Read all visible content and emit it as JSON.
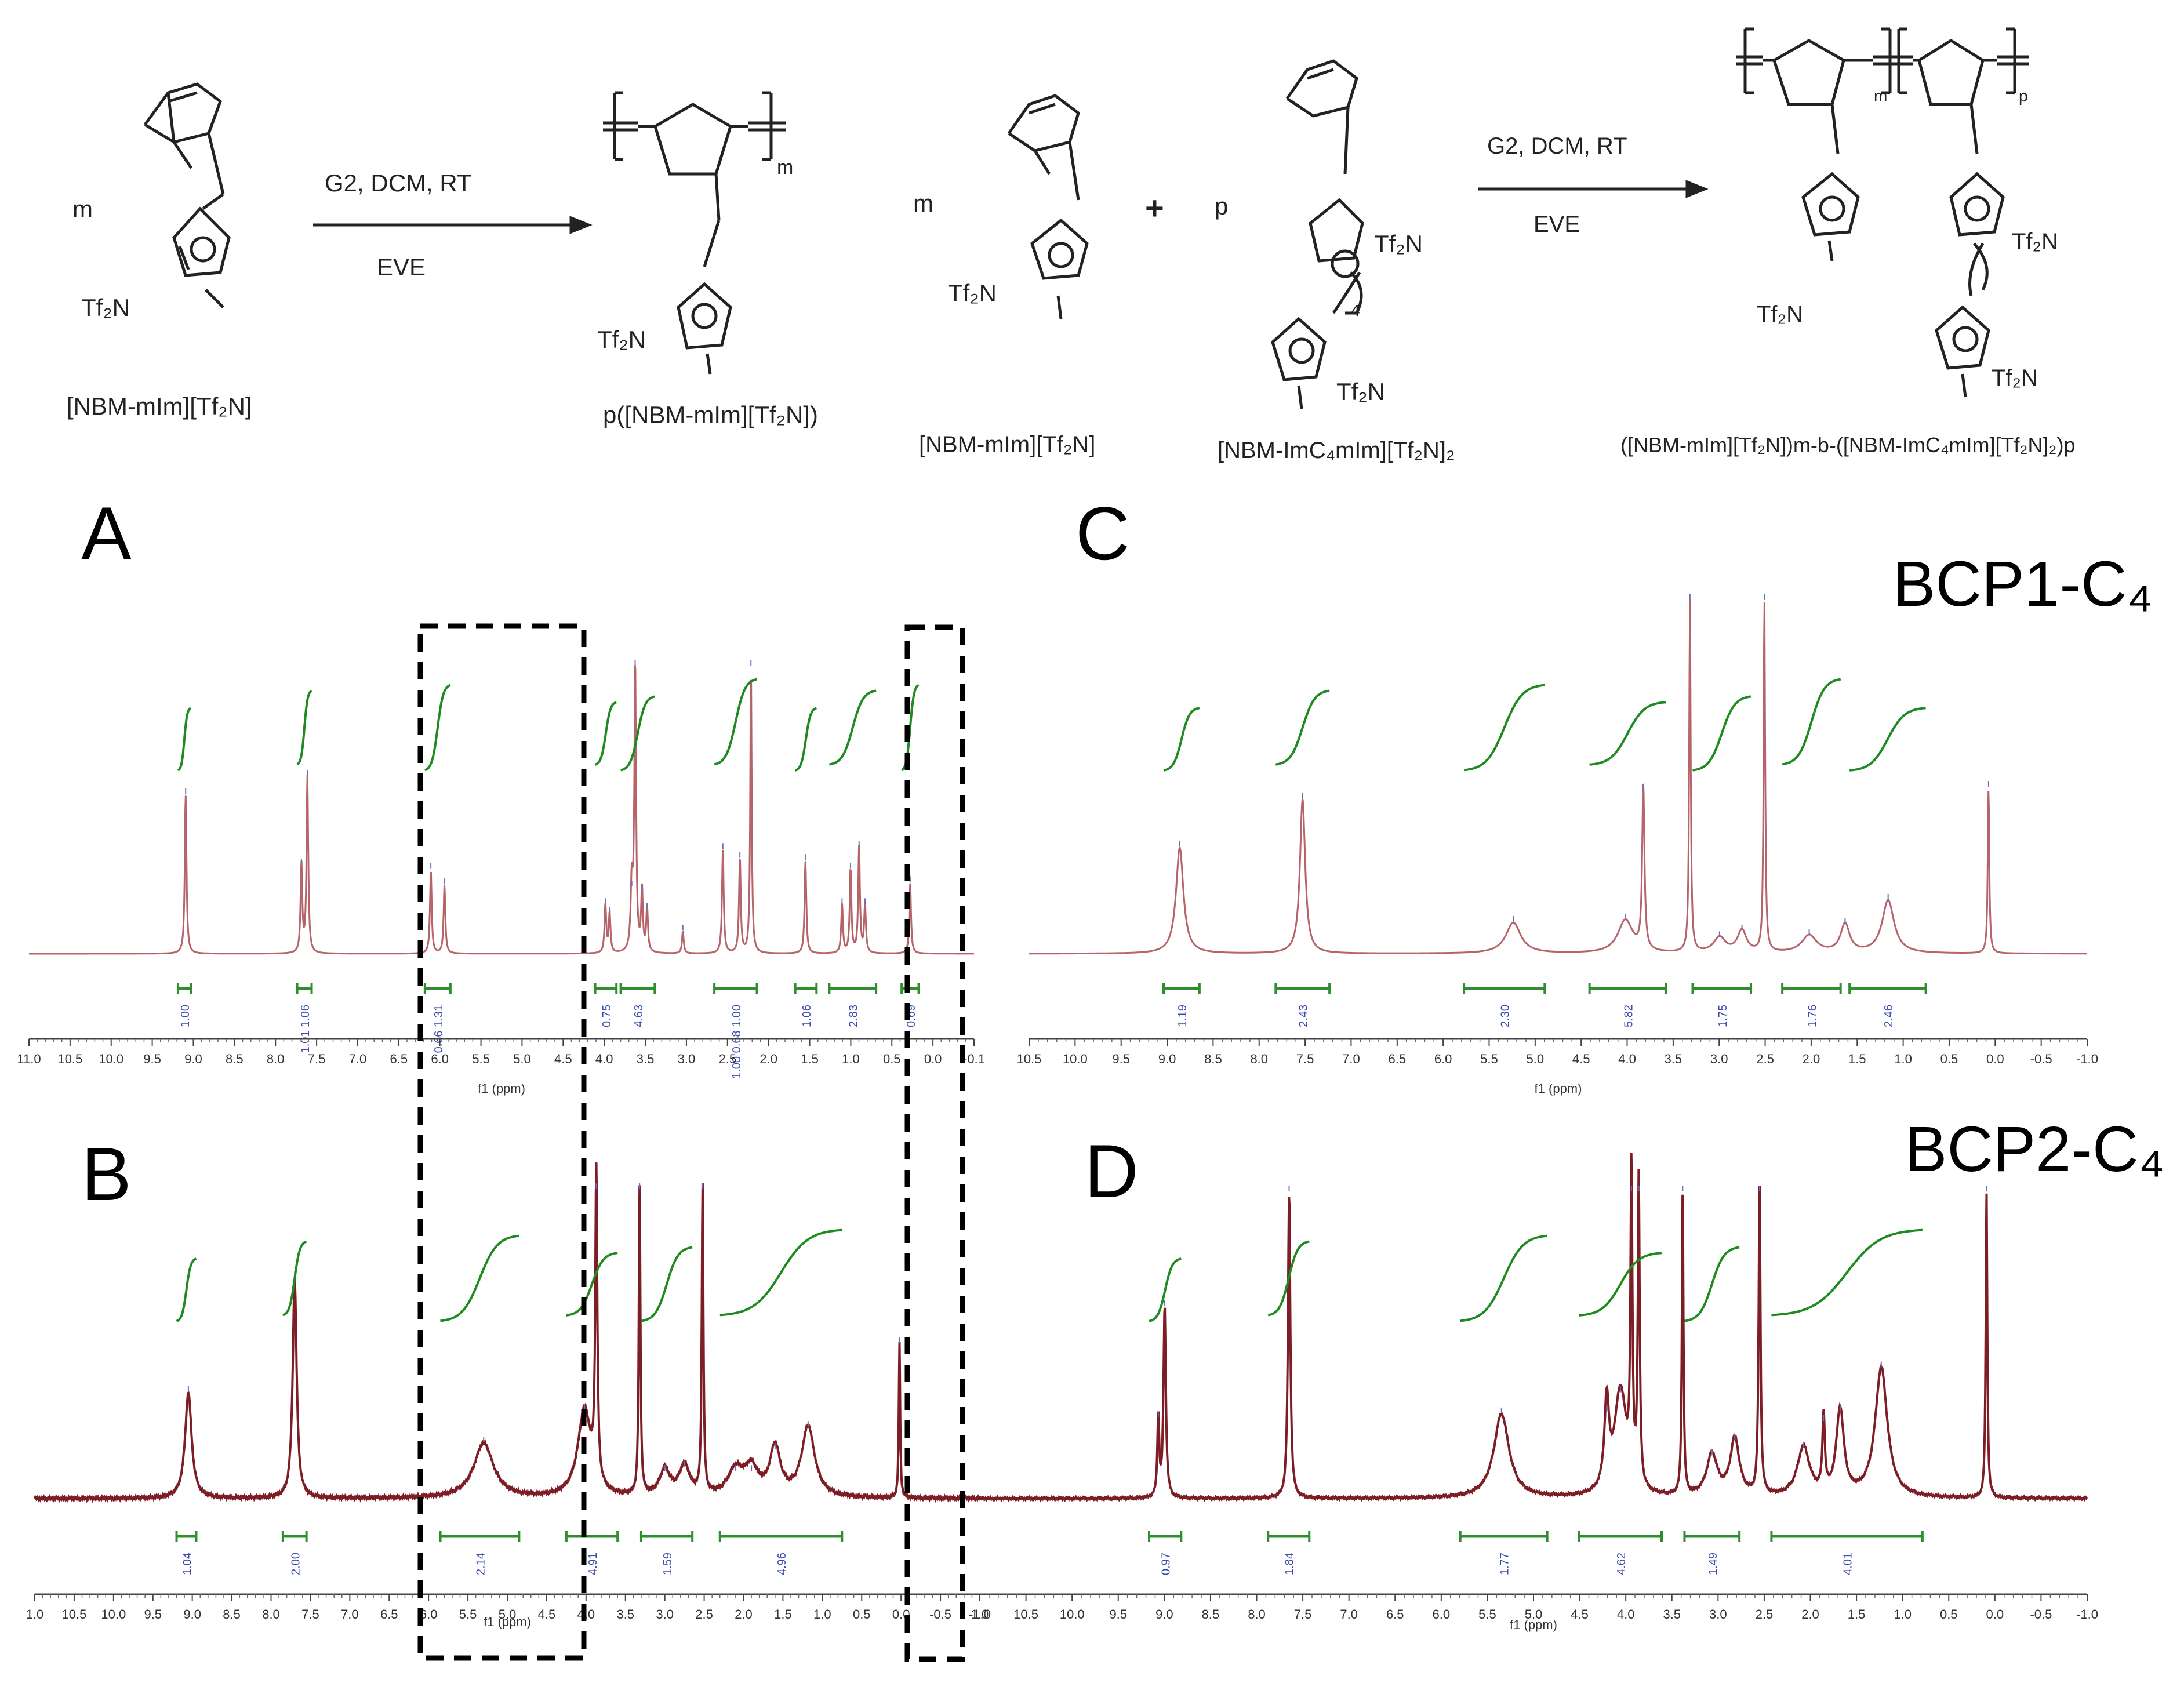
{
  "scheme": {
    "left": {
      "monomer_label": "[NBM-mIm][Tf₂N]",
      "monomer_counter": "Tf₂N",
      "repeat": "m",
      "conditions_top": "G2, DCM, RT",
      "conditions_bottom": "EVE",
      "polymer_label": "p([NBM-mIm][Tf₂N])",
      "polymer_counter": "Tf₂N",
      "polymer_repeat": "m"
    },
    "right": {
      "monomer1_label": "[NBM-mIm][Tf₂N]",
      "monomer1_repeat": "m",
      "monomer1_counter": "Tf₂N",
      "plus": "+",
      "monomer2_repeat": "p",
      "monomer2_label": "[NBM-ImC₄mIm][Tf₂N]₂",
      "monomer2_counter_top": "Tf₂N",
      "monomer2_counter_bottom": "Tf₂N",
      "spacer_subscript": "4",
      "conditions_top": "G2, DCM, RT",
      "conditions_bottom": "EVE",
      "polymer_label": "([NBM-mIm][Tf₂N])m-b-([NBM-ImC₄mIm][Tf₂N]₂)p",
      "polymer_repeat_m": "m",
      "polymer_repeat_p": "p",
      "polymer_counter_left": "Tf₂N",
      "polymer_counter_mid": "Tf₂N",
      "polymer_counter_bottom": "Tf₂N"
    }
  },
  "panel_letters": {
    "A": "A",
    "B": "B",
    "C": "C",
    "D": "D"
  },
  "panel_titles": {
    "C": "BCP1-C₄",
    "D": "BCP2-C₄"
  },
  "colors": {
    "spectrum_light": "#b5646a",
    "spectrum_dark": "#7d1d25",
    "integral_curve": "#1f8a1f",
    "integral_bar": "#2f8f2f",
    "integral_text": "#3c4bb0",
    "dashed_box": "#000000"
  },
  "chart_data": [
    {
      "panel": "A",
      "type": "line",
      "xlabel": "f1 (ppm)",
      "x_ticks": [
        "11.0",
        "10.5",
        "10.0",
        "9.5",
        "9.0",
        "8.5",
        "8.0",
        "7.5",
        "7.0",
        "6.5",
        "6.0",
        "5.5",
        "5.0",
        "4.5",
        "4.0",
        "3.5",
        "3.0",
        "2.5",
        "2.0",
        "1.5",
        "1.0",
        "0.5",
        "0.0",
        "-0.1"
      ],
      "xlim": [
        11.0,
        -0.1
      ],
      "peaks": [
        {
          "ppm": 9.16,
          "height": 0.72,
          "width": 0.012
        },
        {
          "ppm": 7.8,
          "height": 0.4,
          "width": 0.012
        },
        {
          "ppm": 7.73,
          "height": 0.8,
          "width": 0.012
        },
        {
          "ppm": 6.28,
          "height": 0.38,
          "width": 0.012
        },
        {
          "ppm": 6.12,
          "height": 0.31,
          "width": 0.012
        },
        {
          "ppm": 4.23,
          "height": 0.22,
          "width": 0.012
        },
        {
          "ppm": 4.18,
          "height": 0.18,
          "width": 0.012
        },
        {
          "ppm": 3.92,
          "height": 0.3,
          "width": 0.015
        },
        {
          "ppm": 3.88,
          "height": 1.3,
          "width": 0.012
        },
        {
          "ppm": 3.8,
          "height": 0.28,
          "width": 0.012
        },
        {
          "ppm": 3.74,
          "height": 0.2,
          "width": 0.012
        },
        {
          "ppm": 3.32,
          "height": 0.1,
          "width": 0.012
        },
        {
          "ppm": 2.85,
          "height": 0.47,
          "width": 0.012
        },
        {
          "ppm": 2.65,
          "height": 0.43,
          "width": 0.012
        },
        {
          "ppm": 2.52,
          "height": 1.3,
          "width": 0.01
        },
        {
          "ppm": 1.88,
          "height": 0.42,
          "width": 0.012
        },
        {
          "ppm": 1.45,
          "height": 0.22,
          "width": 0.012
        },
        {
          "ppm": 1.35,
          "height": 0.38,
          "width": 0.012
        },
        {
          "ppm": 1.25,
          "height": 0.48,
          "width": 0.012
        },
        {
          "ppm": 1.18,
          "height": 0.22,
          "width": 0.012
        },
        {
          "ppm": 0.65,
          "height": 0.32,
          "width": 0.012
        }
      ],
      "integrals": [
        {
          "from": 9.25,
          "to": 9.1,
          "value": "1.00"
        },
        {
          "from": 7.85,
          "to": 7.68,
          "value": "1.01 1.06"
        },
        {
          "from": 6.35,
          "to": 6.05,
          "value": "0.66 1.31"
        },
        {
          "from": 4.35,
          "to": 4.1,
          "value": "0.75"
        },
        {
          "from": 4.05,
          "to": 3.65,
          "value": "4.63"
        },
        {
          "from": 2.95,
          "to": 2.45,
          "value": "1.00 0.68 1.00"
        },
        {
          "from": 2.0,
          "to": 1.75,
          "value": "1.06"
        },
        {
          "from": 1.6,
          "to": 1.05,
          "value": "2.83"
        },
        {
          "from": 0.75,
          "to": 0.55,
          "value": "0.69"
        }
      ]
    },
    {
      "panel": "B",
      "type": "line",
      "xlabel": "f1 (ppm)",
      "x_ticks": [
        "1.0",
        "10.5",
        "10.0",
        "9.5",
        "9.0",
        "8.5",
        "8.0",
        "7.5",
        "7.0",
        "6.5",
        "6.0",
        "5.5",
        "5.0",
        "4.5",
        "4.0",
        "3.5",
        "3.0",
        "2.5",
        "2.0",
        "1.5",
        "1.0",
        "0.5",
        "0.0",
        "-0.5",
        "-1.0"
      ],
      "xlim": [
        11.0,
        -1.0
      ],
      "peaks": [
        {
          "ppm": 9.05,
          "height": 0.48,
          "width": 0.05
        },
        {
          "ppm": 7.7,
          "height": 1.0,
          "width": 0.03
        },
        {
          "ppm": 5.3,
          "height": 0.25,
          "width": 0.15
        },
        {
          "ppm": 4.02,
          "height": 0.4,
          "width": 0.1
        },
        {
          "ppm": 3.87,
          "height": 1.4,
          "width": 0.015
        },
        {
          "ppm": 3.32,
          "height": 1.4,
          "width": 0.012
        },
        {
          "ppm": 3.0,
          "height": 0.12,
          "width": 0.08
        },
        {
          "ppm": 2.75,
          "height": 0.14,
          "width": 0.08
        },
        {
          "ppm": 2.52,
          "height": 1.4,
          "width": 0.012
        },
        {
          "ppm": 2.1,
          "height": 0.12,
          "width": 0.12
        },
        {
          "ppm": 1.9,
          "height": 0.12,
          "width": 0.1
        },
        {
          "ppm": 1.6,
          "height": 0.22,
          "width": 0.08
        },
        {
          "ppm": 1.18,
          "height": 0.32,
          "width": 0.1
        },
        {
          "ppm": 0.02,
          "height": 0.7,
          "width": 0.01
        }
      ],
      "integrals": [
        {
          "from": 9.2,
          "to": 8.95,
          "value": "1.04"
        },
        {
          "from": 7.85,
          "to": 7.55,
          "value": "2.00"
        },
        {
          "from": 5.85,
          "to": 4.85,
          "value": "2.14"
        },
        {
          "from": 4.25,
          "to": 3.6,
          "value": "4.91"
        },
        {
          "from": 3.3,
          "to": 2.65,
          "value": "1.59"
        },
        {
          "from": 2.3,
          "to": 0.75,
          "value": "4.96"
        }
      ]
    },
    {
      "panel": "C",
      "type": "line",
      "xlabel": "f1 (ppm)",
      "x_ticks": [
        "10.5",
        "10.0",
        "9.5",
        "9.0",
        "8.5",
        "8.0",
        "7.5",
        "7.0",
        "6.5",
        "6.0",
        "5.5",
        "5.0",
        "4.5",
        "4.0",
        "3.5",
        "3.0",
        "2.5",
        "2.0",
        "1.5",
        "1.0",
        "0.5",
        "0.0",
        "-0.5",
        "-1.0"
      ],
      "xlim": [
        10.7,
        -1.1
      ],
      "peaks": [
        {
          "ppm": 9.02,
          "height": 0.48,
          "width": 0.05
        },
        {
          "ppm": 7.65,
          "height": 0.7,
          "width": 0.035
        },
        {
          "ppm": 5.3,
          "height": 0.14,
          "width": 0.1
        },
        {
          "ppm": 4.05,
          "height": 0.15,
          "width": 0.1
        },
        {
          "ppm": 3.85,
          "height": 0.74,
          "width": 0.015
        },
        {
          "ppm": 3.33,
          "height": 1.6,
          "width": 0.01
        },
        {
          "ppm": 3.0,
          "height": 0.07,
          "width": 0.08
        },
        {
          "ppm": 2.75,
          "height": 0.1,
          "width": 0.06
        },
        {
          "ppm": 2.5,
          "height": 1.6,
          "width": 0.01
        },
        {
          "ppm": 2.0,
          "height": 0.08,
          "width": 0.1
        },
        {
          "ppm": 1.6,
          "height": 0.13,
          "width": 0.06
        },
        {
          "ppm": 1.12,
          "height": 0.24,
          "width": 0.08
        },
        {
          "ppm": 0.0,
          "height": 0.75,
          "width": 0.01
        }
      ],
      "integrals": [
        {
          "from": 9.2,
          "to": 8.8,
          "value": "1.19"
        },
        {
          "from": 7.95,
          "to": 7.35,
          "value": "2.43"
        },
        {
          "from": 5.85,
          "to": 4.95,
          "value": "2.30"
        },
        {
          "from": 4.45,
          "to": 3.6,
          "value": "5.82"
        },
        {
          "from": 3.3,
          "to": 2.65,
          "value": "1.75"
        },
        {
          "from": 2.3,
          "to": 1.65,
          "value": "1.76"
        },
        {
          "from": 1.55,
          "to": 0.7,
          "value": "2.46"
        }
      ]
    },
    {
      "panel": "D",
      "type": "line",
      "xlabel": "f1 (ppm)",
      "x_ticks": [
        "1.0",
        "10.5",
        "10.0",
        "9.5",
        "9.0",
        "8.5",
        "8.0",
        "7.5",
        "7.0",
        "6.5",
        "6.0",
        "5.5",
        "5.0",
        "4.5",
        "4.0",
        "3.5",
        "3.0",
        "2.5",
        "2.0",
        "1.5",
        "1.0",
        "0.5",
        "0.0",
        "-0.5",
        "-1.0"
      ],
      "xlim": [
        11.0,
        -1.1
      ],
      "peaks": [
        {
          "ppm": 9.05,
          "height": 0.42,
          "width": 0.012
        },
        {
          "ppm": 8.98,
          "height": 1.0,
          "width": 0.015
        },
        {
          "ppm": 7.62,
          "height": 1.6,
          "width": 0.015
        },
        {
          "ppm": 5.3,
          "height": 0.44,
          "width": 0.1
        },
        {
          "ppm": 4.15,
          "height": 0.45,
          "width": 0.03
        },
        {
          "ppm": 4.0,
          "height": 0.55,
          "width": 0.08
        },
        {
          "ppm": 3.88,
          "height": 1.6,
          "width": 0.012
        },
        {
          "ppm": 3.8,
          "height": 1.6,
          "width": 0.012
        },
        {
          "ppm": 3.32,
          "height": 1.6,
          "width": 0.01
        },
        {
          "ppm": 3.0,
          "height": 0.22,
          "width": 0.07
        },
        {
          "ppm": 2.75,
          "height": 0.3,
          "width": 0.06
        },
        {
          "ppm": 2.48,
          "height": 1.6,
          "width": 0.012
        },
        {
          "ppm": 2.0,
          "height": 0.26,
          "width": 0.08
        },
        {
          "ppm": 1.78,
          "height": 0.4,
          "width": 0.015
        },
        {
          "ppm": 1.6,
          "height": 0.45,
          "width": 0.05
        },
        {
          "ppm": 1.15,
          "height": 0.68,
          "width": 0.08
        },
        {
          "ppm": 0.0,
          "height": 1.6,
          "width": 0.01
        }
      ],
      "integrals": [
        {
          "from": 9.15,
          "to": 8.8,
          "value": "0.97"
        },
        {
          "from": 7.85,
          "to": 7.4,
          "value": "1.84"
        },
        {
          "from": 5.75,
          "to": 4.8,
          "value": "1.77"
        },
        {
          "from": 4.45,
          "to": 3.55,
          "value": "4.62"
        },
        {
          "from": 3.3,
          "to": 2.7,
          "value": "1.49"
        },
        {
          "from": 2.35,
          "to": 0.7,
          "value": "4.01"
        }
      ]
    }
  ]
}
